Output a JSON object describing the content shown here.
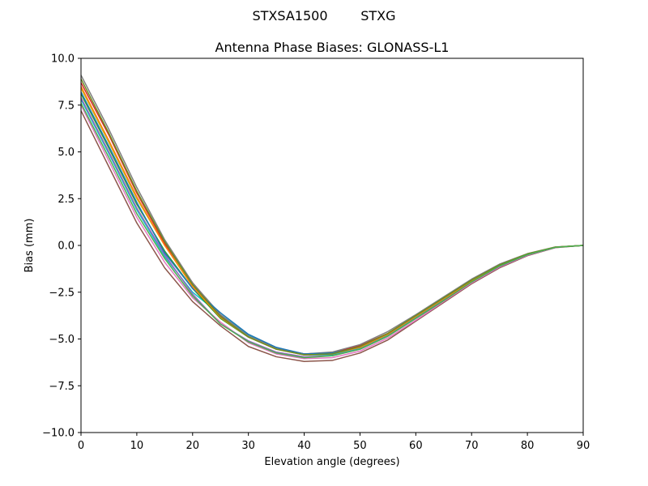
{
  "chart_data": {
    "type": "line",
    "suptitle": "STXSA1500        STXG",
    "title": "Antenna Phase Biases: GLONASS-L1",
    "xlabel": "Elevation angle (degrees)",
    "ylabel": "Bias (mm)",
    "xlim": [
      0,
      90
    ],
    "ylim": [
      -10,
      10
    ],
    "x_ticks": [
      0,
      10,
      20,
      30,
      40,
      50,
      60,
      70,
      80,
      90
    ],
    "y_ticks": [
      -10.0,
      -7.5,
      -5.0,
      -2.5,
      0.0,
      2.5,
      5.0,
      7.5,
      10.0
    ],
    "grid": false,
    "x": [
      0,
      5,
      10,
      15,
      20,
      25,
      30,
      35,
      40,
      45,
      50,
      55,
      60,
      65,
      70,
      75,
      80,
      85,
      90
    ],
    "series": [
      {
        "color": "#8c564b",
        "values": [
          7.2,
          4.2,
          1.2,
          -1.2,
          -3.0,
          -4.3,
          -5.4,
          -5.95,
          -6.2,
          -6.15,
          -5.75,
          -5.05,
          -4.05,
          -3.05,
          -2.05,
          -1.2,
          -0.55,
          -0.12,
          0.0
        ]
      },
      {
        "color": "#e377c2",
        "values": [
          7.5,
          4.5,
          1.5,
          -0.9,
          -2.8,
          -4.1,
          -5.2,
          -5.8,
          -6.05,
          -6.0,
          -5.65,
          -4.95,
          -4.0,
          -3.0,
          -2.0,
          -1.15,
          -0.52,
          -0.11,
          0.0
        ]
      },
      {
        "color": "#17becf",
        "values": [
          7.8,
          4.9,
          1.9,
          -0.6,
          -2.5,
          -3.7,
          -4.8,
          -5.45,
          -5.85,
          -5.85,
          -5.5,
          -4.8,
          -3.85,
          -2.9,
          -1.95,
          -1.1,
          -0.5,
          -0.1,
          0.0
        ]
      },
      {
        "color": "#2ca02c",
        "values": [
          8.1,
          5.2,
          2.2,
          -0.3,
          -2.3,
          -3.9,
          -4.9,
          -5.5,
          -5.8,
          -5.75,
          -5.45,
          -4.75,
          -3.8,
          -2.85,
          -1.9,
          -1.08,
          -0.48,
          -0.1,
          0.0
        ]
      },
      {
        "color": "#bcbd22",
        "values": [
          8.4,
          5.5,
          2.5,
          0.0,
          -2.1,
          -3.8,
          -4.85,
          -5.5,
          -5.8,
          -5.75,
          -5.4,
          -4.7,
          -3.75,
          -2.8,
          -1.85,
          -1.05,
          -0.46,
          -0.09,
          0.0
        ]
      },
      {
        "color": "#d62728",
        "values": [
          8.7,
          5.9,
          2.8,
          0.1,
          -2.0,
          -3.75,
          -4.85,
          -5.5,
          -5.8,
          -5.75,
          -5.35,
          -4.7,
          -3.75,
          -2.8,
          -1.85,
          -1.05,
          -0.46,
          -0.09,
          0.0
        ]
      },
      {
        "color": "#7f7f7f",
        "values": [
          9.1,
          6.2,
          3.1,
          0.3,
          -2.0,
          -3.7,
          -4.85,
          -5.5,
          -5.8,
          -5.7,
          -5.3,
          -4.6,
          -3.7,
          -2.75,
          -1.8,
          -1.0,
          -0.44,
          -0.08,
          0.0
        ]
      },
      {
        "color": "#9467bd",
        "values": [
          7.9,
          5.0,
          2.0,
          -0.5,
          -2.6,
          -4.2,
          -5.1,
          -5.7,
          -5.95,
          -5.9,
          -5.55,
          -4.85,
          -3.9,
          -2.95,
          -1.95,
          -1.12,
          -0.5,
          -0.1,
          0.0
        ]
      },
      {
        "color": "#1f77b4",
        "values": [
          8.2,
          5.3,
          2.3,
          -0.4,
          -2.3,
          -3.6,
          -4.75,
          -5.45,
          -5.8,
          -5.75,
          -5.45,
          -4.75,
          -3.8,
          -2.85,
          -1.9,
          -1.08,
          -0.48,
          -0.1,
          0.0
        ]
      },
      {
        "color": "#ff7f0e",
        "values": [
          8.5,
          5.6,
          2.6,
          0.0,
          -2.2,
          -3.85,
          -4.9,
          -5.55,
          -5.85,
          -5.8,
          -5.45,
          -4.75,
          -3.8,
          -2.85,
          -1.9,
          -1.07,
          -0.47,
          -0.09,
          0.0
        ]
      },
      {
        "color": "#6b8e23",
        "values": [
          8.9,
          6.0,
          2.9,
          0.2,
          -2.1,
          -3.8,
          -4.9,
          -5.55,
          -5.85,
          -5.8,
          -5.4,
          -4.7,
          -3.75,
          -2.8,
          -1.85,
          -1.04,
          -0.45,
          -0.09,
          0.0
        ]
      },
      {
        "color": "#4caf50",
        "values": [
          7.6,
          4.7,
          1.7,
          -0.7,
          -2.7,
          -4.2,
          -5.15,
          -5.75,
          -6.0,
          -5.9,
          -5.55,
          -4.85,
          -3.9,
          -2.95,
          -1.95,
          -1.1,
          -0.49,
          -0.1,
          0.0
        ]
      }
    ]
  }
}
